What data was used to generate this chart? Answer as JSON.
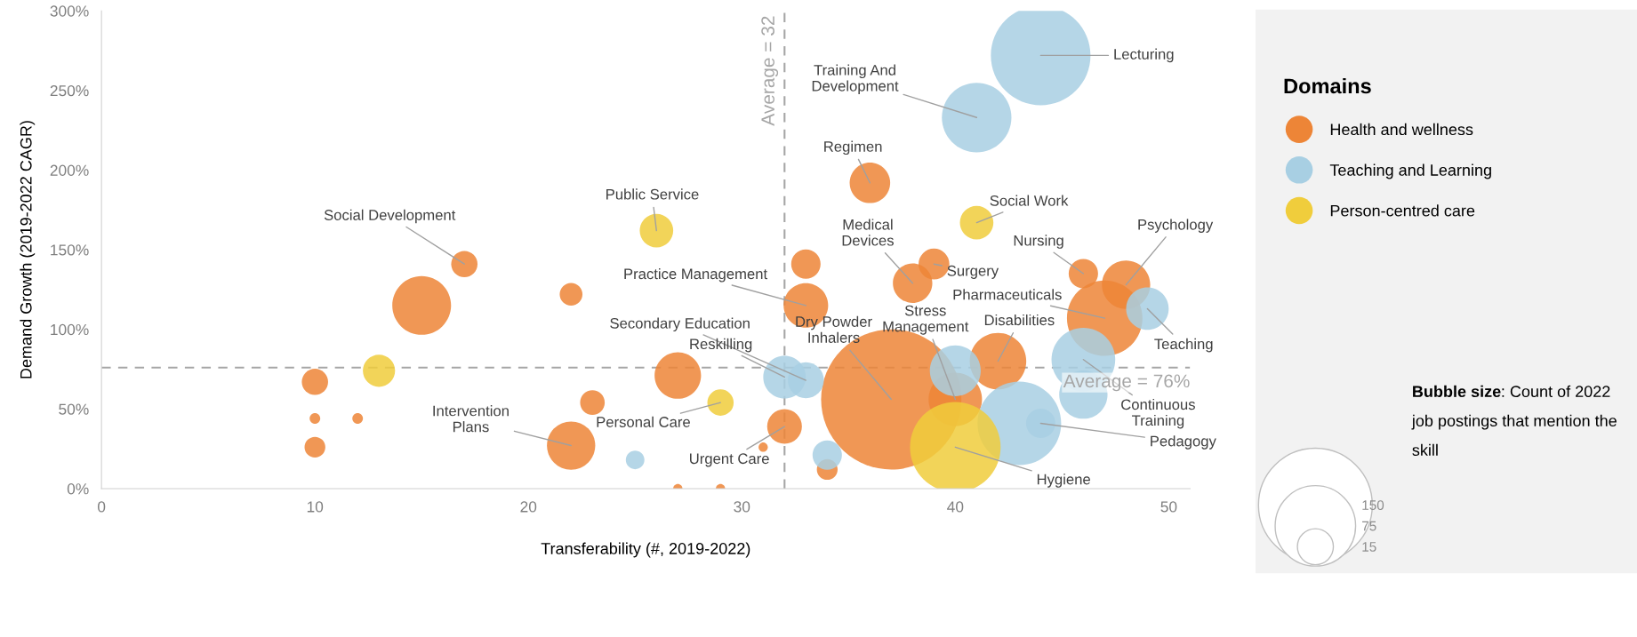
{
  "chart_data": {
    "type": "bubble",
    "xlabel": "Transferability (#, 2019-2022)",
    "ylabel": "Demand Growth (2019-2022 CAGR)",
    "legend_title": "Domains",
    "legend": "right",
    "grid": false,
    "xlim": [
      0,
      51
    ],
    "xticks": [
      0,
      10,
      20,
      30,
      40,
      50
    ],
    "ylim": [
      0,
      300
    ],
    "yticks": [
      {
        "value": 0,
        "label": "0%"
      },
      {
        "value": 50,
        "label": "50%"
      },
      {
        "value": 100,
        "label": "100%"
      },
      {
        "value": 150,
        "label": "150%"
      },
      {
        "value": 200,
        "label": "200%"
      },
      {
        "value": 250,
        "label": "250%"
      },
      {
        "value": 300,
        "label": "300%"
      }
    ],
    "size_legend": [
      15,
      75,
      150
    ],
    "series": [
      {
        "name": "Health and wellness",
        "color": "#ed8537",
        "x": [
          17,
          15,
          22,
          10,
          10,
          12,
          10,
          22,
          23,
          27,
          27,
          29,
          31,
          32,
          33,
          33,
          36,
          38,
          39,
          34,
          37,
          40,
          42,
          46,
          48,
          47
        ],
        "values": [
          141,
          115,
          122,
          67,
          44,
          44,
          26,
          27,
          54,
          71,
          0,
          0,
          26,
          39,
          141,
          115,
          192,
          129,
          141,
          12,
          56,
          56,
          80,
          135,
          128,
          107
        ],
        "sizes": [
          8,
          40,
          6,
          8,
          1.3,
          1.3,
          5,
          27,
          7,
          25,
          1,
          1,
          1,
          14,
          10,
          23,
          19,
          18,
          11,
          5,
          228,
          33,
          37,
          10,
          27,
          66
        ]
      },
      {
        "name": "Teaching and Learning",
        "color": "#a8cfe3",
        "x": [
          44,
          41,
          49,
          46,
          46,
          44,
          43,
          40,
          32,
          33,
          34,
          25
        ],
        "values": [
          272,
          233,
          113,
          81,
          59,
          41,
          41,
          74,
          70,
          68,
          21,
          18
        ],
        "sizes": [
          115,
          56,
          21,
          47,
          27,
          10,
          81,
          30,
          21,
          15,
          10,
          4
        ]
      },
      {
        "name": "Person-centred care",
        "color": "#f0cd3c",
        "x": [
          26,
          41,
          13,
          29,
          40
        ],
        "values": [
          162,
          167,
          74,
          54,
          26
        ],
        "sizes": [
          13,
          13,
          12,
          8,
          95
        ]
      }
    ],
    "ref_lines": [
      {
        "axis": "x",
        "value": 32,
        "label": "Average = 32",
        "color": "#a6a6a6",
        "line_style": "dashed"
      },
      {
        "axis": "y",
        "value": 76,
        "label": "Average = 76%",
        "color": "#a6a6a6",
        "line_style": "dashed"
      }
    ],
    "annotations": [
      {
        "text": "Social Development",
        "x": 17,
        "y": 141
      },
      {
        "text": "Public Service",
        "x": 26,
        "y": 162
      },
      {
        "text": "Training And\nDevelopment",
        "x": 41,
        "y": 233
      },
      {
        "text": "Lecturing",
        "x": 44,
        "y": 272
      },
      {
        "text": "Regimen",
        "x": 36,
        "y": 192
      },
      {
        "text": "Social Work",
        "x": 41,
        "y": 167
      },
      {
        "text": "Medical\nDevices",
        "x": 38,
        "y": 129
      },
      {
        "text": "Surgery",
        "x": 39,
        "y": 141
      },
      {
        "text": "Nursing",
        "x": 46,
        "y": 135
      },
      {
        "text": "Psychology",
        "x": 48,
        "y": 128
      },
      {
        "text": "Practice Management",
        "x": 33,
        "y": 115
      },
      {
        "text": "Pharmaceuticals",
        "x": 47,
        "y": 107
      },
      {
        "text": "Secondary Education",
        "x": 33,
        "y": 68
      },
      {
        "text": "Dry Powder\nInhalers",
        "x": 37,
        "y": 56
      },
      {
        "text": "Stress\nManagement",
        "x": 40,
        "y": 56
      },
      {
        "text": "Disabilities",
        "x": 42,
        "y": 80
      },
      {
        "text": "Teaching",
        "x": 49,
        "y": 113
      },
      {
        "text": "Reskilling",
        "x": 32,
        "y": 70
      },
      {
        "text": "Continuous\nTraining",
        "x": 46,
        "y": 81
      },
      {
        "text": "Pedagogy",
        "x": 44,
        "y": 41
      },
      {
        "text": "Intervention\nPlans",
        "x": 22,
        "y": 27
      },
      {
        "text": "Personal Care",
        "x": 29,
        "y": 54
      },
      {
        "text": "Urgent Care",
        "x": 32,
        "y": 39
      },
      {
        "text": "Hygiene",
        "x": 40,
        "y": 26
      },
      "Bubble size: Count of 2022 job postings that mention the skill"
    ]
  }
}
